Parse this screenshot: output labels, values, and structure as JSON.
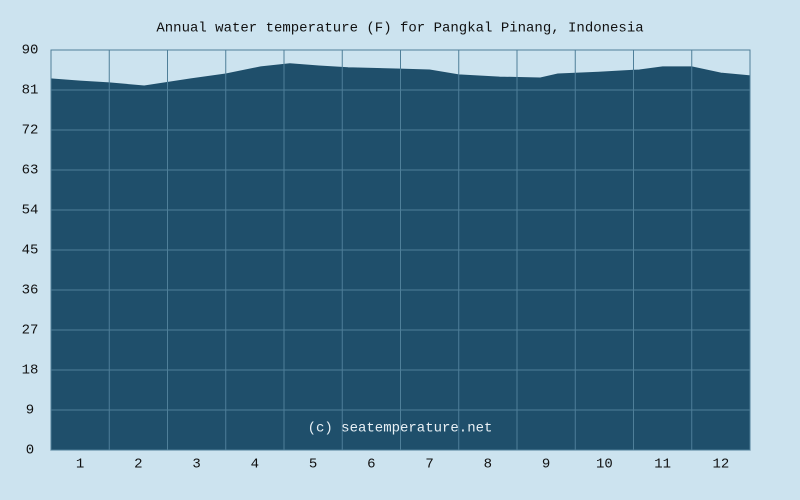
{
  "chart_data": {
    "type": "area",
    "title": "Annual water temperature (F) for Pangkal Pinang, Indonesia",
    "annotation": "(c) seatemperature.net",
    "x": [
      0,
      0.5,
      1.0,
      1.6,
      2.4,
      3.0,
      3.6,
      4.1,
      4.6,
      5.1,
      6.0,
      6.5,
      7.0,
      7.7,
      8.4,
      8.7,
      9.4,
      10.1,
      10.5,
      11.0,
      11.5,
      12.0
    ],
    "series": [
      {
        "name": "Water temperature",
        "color": "#1f4f6b",
        "values": [
          83.5,
          83.0,
          82.6,
          81.9,
          83.5,
          84.6,
          86.2,
          86.9,
          86.4,
          86.0,
          85.7,
          85.5,
          84.4,
          83.9,
          83.7,
          84.6,
          85.0,
          85.5,
          86.2,
          86.2,
          84.8,
          84.2
        ]
      }
    ],
    "xlim": [
      0,
      12
    ],
    "xticks": [
      {
        "value": 0.5,
        "label": "1"
      },
      {
        "value": 1.5,
        "label": "2"
      },
      {
        "value": 2.5,
        "label": "3"
      },
      {
        "value": 3.5,
        "label": "4"
      },
      {
        "value": 4.5,
        "label": "5"
      },
      {
        "value": 5.5,
        "label": "6"
      },
      {
        "value": 6.5,
        "label": "7"
      },
      {
        "value": 7.5,
        "label": "8"
      },
      {
        "value": 8.5,
        "label": "9"
      },
      {
        "value": 9.5,
        "label": "10"
      },
      {
        "value": 10.5,
        "label": "11"
      },
      {
        "value": 11.5,
        "label": "12"
      }
    ],
    "ylim": [
      0,
      90
    ],
    "yticks": [
      0,
      9,
      18,
      27,
      36,
      45,
      54,
      63,
      72,
      81,
      90
    ],
    "grid": true
  }
}
